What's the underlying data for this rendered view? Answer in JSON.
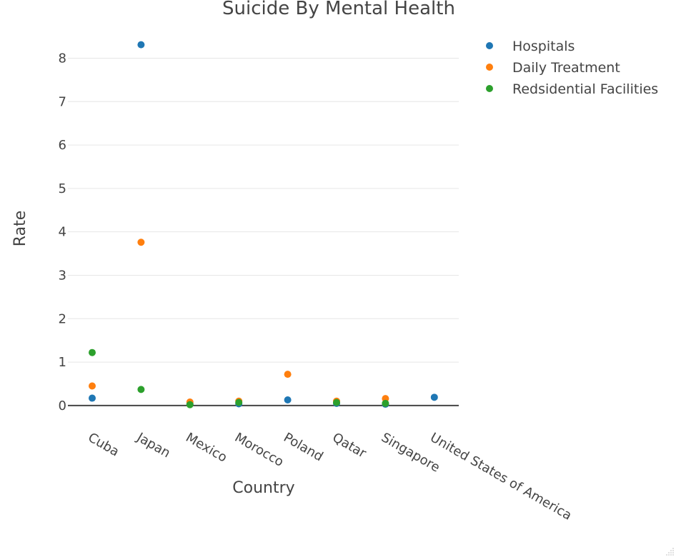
{
  "chart_data": {
    "type": "scatter",
    "title": "Suicide By Mental Health",
    "xlabel": "Country",
    "ylabel": "Rate",
    "categories": [
      "Cuba",
      "Japan",
      "Mexico",
      "Morocco",
      "Poland",
      "Qatar",
      "Singapore",
      "United States of America"
    ],
    "ylim": [
      -0.15,
      8.6
    ],
    "yticks": [
      0,
      1,
      2,
      3,
      4,
      5,
      6,
      7,
      8
    ],
    "grid": true,
    "legend_position": "top-right",
    "series": [
      {
        "name": "Hospitals",
        "color": "#1f77b4",
        "values": [
          0.17,
          8.31,
          0.04,
          0.04,
          0.13,
          0.05,
          0.03,
          0.19
        ]
      },
      {
        "name": "Daily Treatment",
        "color": "#ff7f0e",
        "values": [
          0.45,
          3.76,
          0.08,
          0.1,
          0.72,
          0.1,
          0.16,
          null
        ]
      },
      {
        "name": "Redsidential Facilities",
        "color": "#2ca02c",
        "values": [
          1.22,
          0.37,
          0.02,
          0.07,
          null,
          0.07,
          0.05,
          null
        ]
      }
    ]
  }
}
